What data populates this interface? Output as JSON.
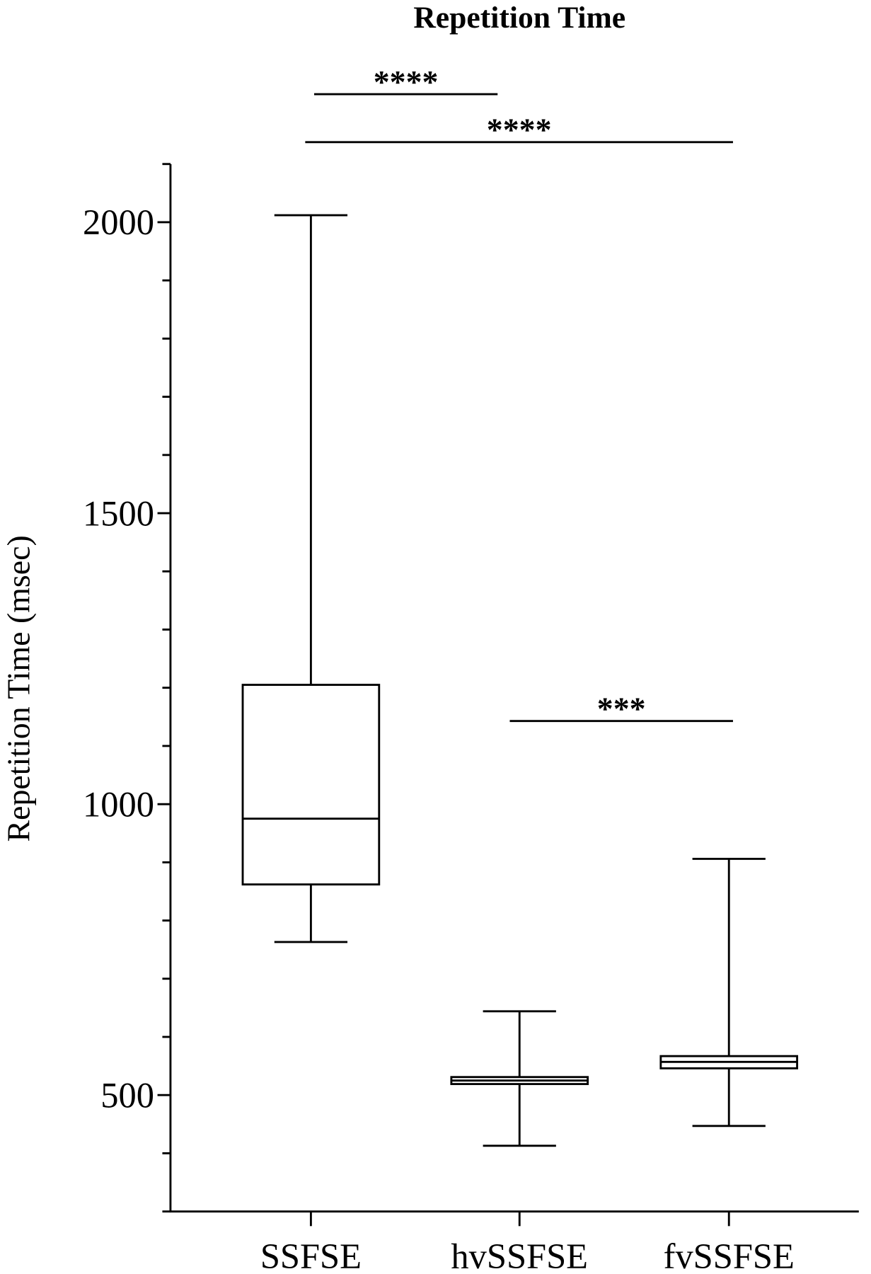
{
  "chart_data": {
    "type": "box",
    "title": "Repetition Time",
    "y_label": "Repetition Time (msec)",
    "categories": [
      "SSFSE",
      "hvSSFSE",
      "fvSSFSE"
    ],
    "boxes": [
      {
        "min": 763,
        "q1": 862,
        "median": 975,
        "q3": 1205,
        "max": 2012
      },
      {
        "min": 413,
        "q1": 519,
        "median": 525,
        "q3": 531,
        "max": 644
      },
      {
        "min": 447,
        "q1": 546,
        "median": 557,
        "q3": 567,
        "max": 906
      }
    ],
    "color": "#000000",
    "ylim": [
      300,
      2100
    ],
    "yticks": [
      500,
      1000,
      1500,
      2000
    ],
    "yticks_minor": [
      300,
      400,
      600,
      700,
      800,
      900,
      1100,
      1200,
      1300,
      1400,
      1600,
      1700,
      1800,
      1900,
      2100
    ],
    "comparisons": [
      {
        "pair": [
          0,
          1
        ],
        "label": "****"
      },
      {
        "pair": [
          0,
          2
        ],
        "label": "****"
      },
      {
        "pair": [
          1,
          2
        ],
        "label": "***"
      }
    ]
  }
}
